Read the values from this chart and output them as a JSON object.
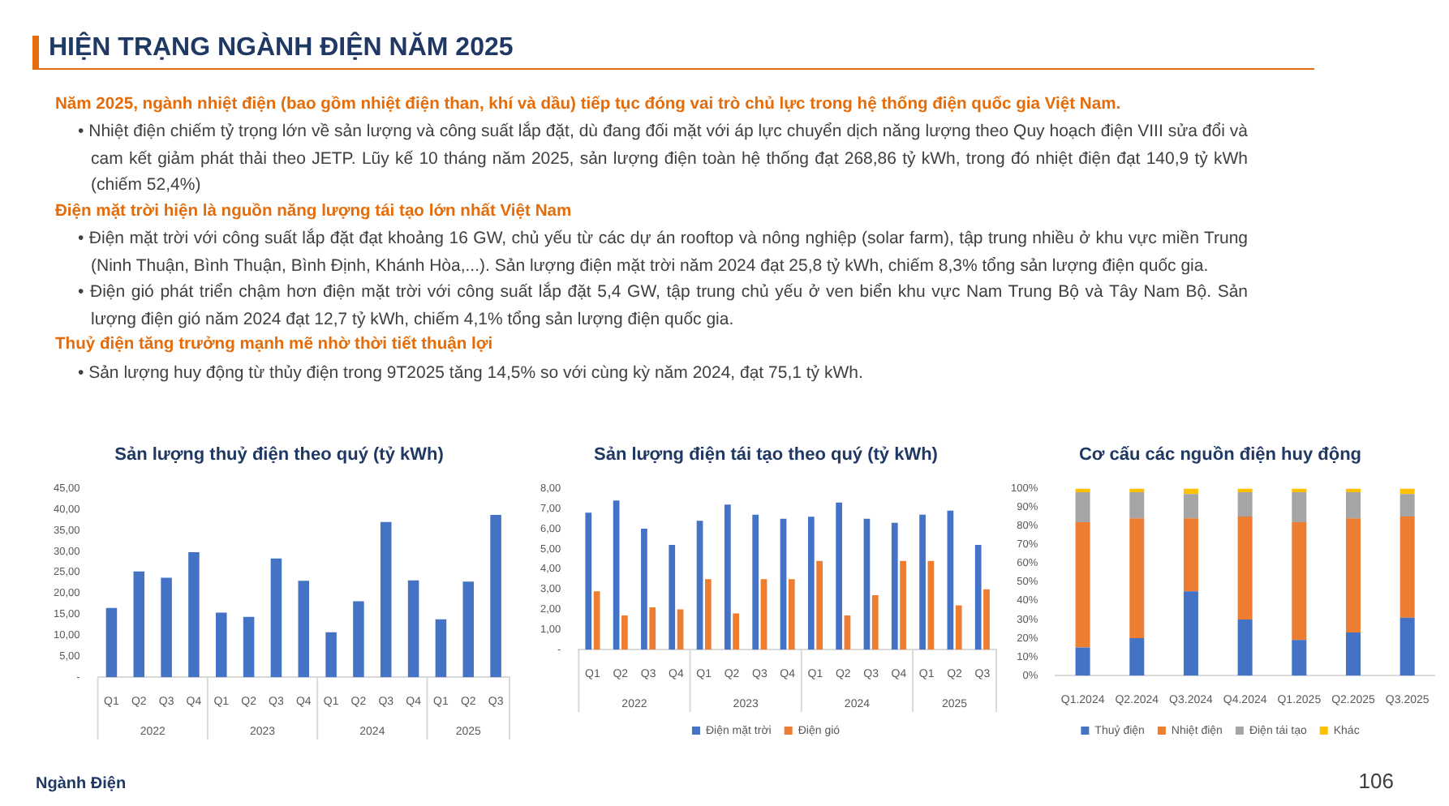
{
  "chart_data": [
    {
      "type": "other",
      "title": "HIỆN TRẠNG NGÀNH ĐIỆN NĂM 2025",
      "subtitle": "Năm 2025, ngành nhiệt điện (bao gồm nhiệt điện than, khí và dầu) tiếp tục đóng vai trò chủ lực trong hệ thống điện quốc gia Việt Nam.",
      "annotations": [
        "• Nhiệt điện chiếm tỷ trọng lớn về sản lượng và công suất lắp đặt, dù đang đối mặt với áp lực chuyển dịch năng lượng theo Quy hoạch điện VIII sửa đổi và cam kết giảm phát thải theo JETP. Lũy kế 10 tháng năm 2025, sản lượng điện toàn hệ thống đạt 268,86 tỷ kWh, trong đó nhiệt điện đạt 140,9 tỷ kWh (chiếm 52,4%)"
      ]
    },
    {
      "type": "other",
      "title": "Điện mặt trời hiện là nguồn năng lượng tái tạo lớn nhất Việt Nam",
      "annotations": [
        "• Điện mặt trời với công suất lắp đặt đạt khoảng 16 GW, chủ yếu từ các dự án rooftop và nông nghiệp (solar farm), tập trung nhiều ở khu vực miền Trung (Ninh Thuận, Bình Thuận, Bình Định, Khánh Hòa,...). Sản lượng điện mặt trời năm 2024 đạt 25,8 tỷ kWh, chiếm 8,3% tổng sản lượng điện quốc gia.",
        "• Điện gió phát triển chậm hơn điện mặt trời với công suất lắp đặt 5,4 GW, tập trung chủ yếu ở ven biển khu vực Nam Trung Bộ và Tây Nam Bộ. Sản lượng điện gió năm 2024 đạt 12,7 tỷ kWh, chiếm 4,1% tổng sản lượng điện quốc gia."
      ]
    },
    {
      "type": "other",
      "title": "Thuỷ điện tăng trưởng mạnh mẽ nhờ thời tiết thuận lợi",
      "annotations": [
        "• Sản lượng huy động từ thủy điện trong 9T2025 tăng 14,5% so với cùng kỳ năm 2024, đạt 75,1 tỷ kWh."
      ]
    },
    {
      "type": "bar",
      "title": "Sản lượng thuỷ điện theo quý (tỷ kWh)",
      "categories": [
        "Q1",
        "Q2",
        "Q3",
        "Q4",
        "Q1",
        "Q2",
        "Q3",
        "Q4",
        "Q1",
        "Q2",
        "Q3",
        "Q4",
        "Q1",
        "Q2",
        "Q3"
      ],
      "annotations": [
        "2022",
        "2023",
        "2024",
        "2025"
      ],
      "values": [
        16.5,
        25.2,
        23.7,
        29.8,
        15.4,
        14.4,
        28.3,
        23.0,
        10.7,
        18.1,
        37.0,
        23.1,
        13.8,
        22.8,
        38.7
      ],
      "color": "#4472c4",
      "ylim": [
        0,
        45
      ],
      "yticks": [
        {
          "value": 0,
          "label": "-"
        },
        {
          "value": 5,
          "label": "5,00"
        },
        {
          "value": 10,
          "label": "10,00"
        },
        {
          "value": 15,
          "label": "15,00"
        },
        {
          "value": 20,
          "label": "20,00"
        },
        {
          "value": 25,
          "label": "25,00"
        },
        {
          "value": 30,
          "label": "30,00"
        },
        {
          "value": 35,
          "label": "35,00"
        },
        {
          "value": 40,
          "label": "40,00"
        },
        {
          "value": 45,
          "label": "45,00"
        }
      ]
    },
    {
      "type": "bar",
      "title": "Sản lượng điện tái tạo theo quý (tỷ kWh)",
      "categories": [
        "Q1",
        "Q2",
        "Q3",
        "Q4",
        "Q1",
        "Q2",
        "Q3",
        "Q4",
        "Q1",
        "Q2",
        "Q3",
        "Q4",
        "Q1",
        "Q2",
        "Q3"
      ],
      "annotations": [
        "2022",
        "2023",
        "2024",
        "2025"
      ],
      "series": [
        {
          "name": "Điện mặt trời",
          "color": "#4472c4",
          "values": [
            6.8,
            7.4,
            6.0,
            5.2,
            6.4,
            7.2,
            6.7,
            6.5,
            6.6,
            7.3,
            6.5,
            6.3,
            6.7,
            6.9,
            5.2
          ]
        },
        {
          "name": "Điện gió",
          "color": "#ed7d31",
          "values": [
            2.9,
            1.7,
            2.1,
            2.0,
            3.5,
            1.8,
            3.5,
            3.5,
            4.4,
            1.7,
            2.7,
            4.4,
            4.4,
            2.2,
            3.0
          ]
        }
      ],
      "ylim": [
        0,
        8
      ],
      "yticks": [
        {
          "value": 0,
          "label": "-"
        },
        {
          "value": 1,
          "label": "1,00"
        },
        {
          "value": 2,
          "label": "2,00"
        },
        {
          "value": 3,
          "label": "3,00"
        },
        {
          "value": 4,
          "label": "4,00"
        },
        {
          "value": 5,
          "label": "5,00"
        },
        {
          "value": 6,
          "label": "6,00"
        },
        {
          "value": 7,
          "label": "7,00"
        },
        {
          "value": 8,
          "label": "8,00"
        }
      ],
      "legend": "bottom"
    },
    {
      "type": "bar",
      "title": "Cơ cấu các nguồn điện huy động",
      "stacked": true,
      "categories": [
        "Q1.2024",
        "Q2.2024",
        "Q3.2024",
        "Q4.2024",
        "Q1.2025",
        "Q2.2025",
        "Q3.2025"
      ],
      "series": [
        {
          "name": "Thuỷ điện",
          "color": "#4472c4",
          "values": [
            15,
            20,
            45,
            30,
            19,
            23,
            31
          ]
        },
        {
          "name": "Nhiệt điện",
          "color": "#ed7d31",
          "values": [
            67,
            64,
            39,
            55,
            63,
            61,
            54
          ]
        },
        {
          "name": "Điện tái tạo",
          "color": "#a5a5a5",
          "values": [
            16,
            14,
            13,
            13,
            16,
            14,
            12
          ]
        },
        {
          "name": "Khác",
          "color": "#ffc000",
          "values": [
            2,
            2,
            3,
            2,
            2,
            2,
            3
          ]
        }
      ],
      "ylim": [
        0,
        100
      ],
      "yticks": [
        {
          "value": 0,
          "label": "0%"
        },
        {
          "value": 10,
          "label": "10%"
        },
        {
          "value": 20,
          "label": "20%"
        },
        {
          "value": 30,
          "label": "30%"
        },
        {
          "value": 40,
          "label": "40%"
        },
        {
          "value": 50,
          "label": "50%"
        },
        {
          "value": 60,
          "label": "60%"
        },
        {
          "value": 70,
          "label": "70%"
        },
        {
          "value": 80,
          "label": "80%"
        },
        {
          "value": 90,
          "label": "90%"
        },
        {
          "value": 100,
          "label": "100%"
        }
      ],
      "legend": "bottom"
    },
    {
      "type": "other",
      "annotations": [
        "Ngành Điện",
        "106"
      ]
    }
  ]
}
